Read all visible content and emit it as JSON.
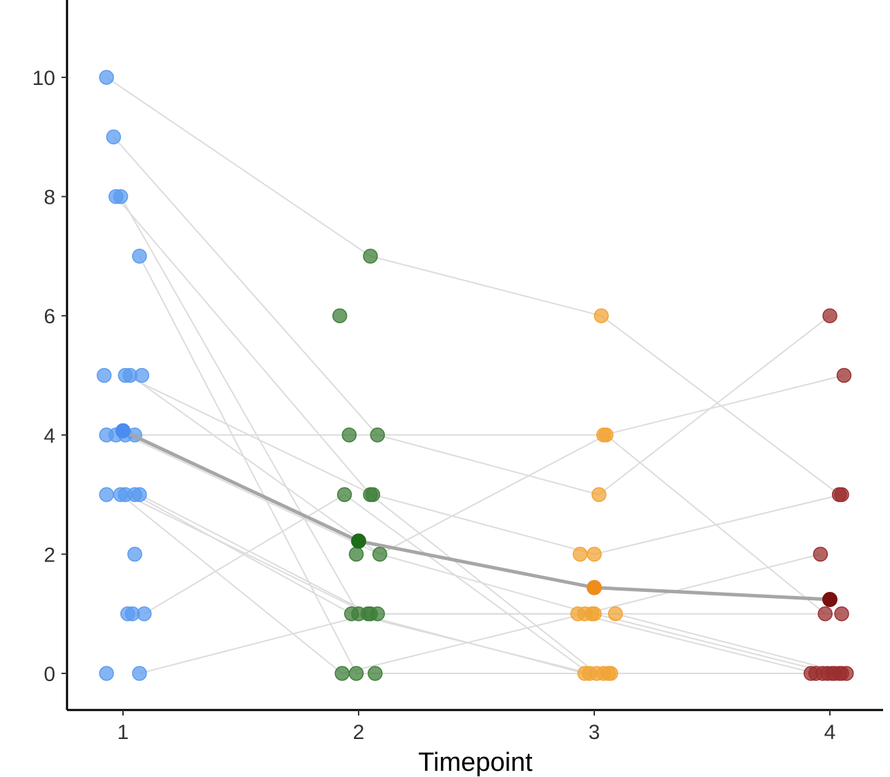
{
  "chart_data": {
    "type": "scatter",
    "xlabel": "Timepoint",
    "ylabel": "",
    "x_ticks": [
      "1",
      "2",
      "3",
      "4"
    ],
    "y_ticks": [
      "0",
      "2",
      "4",
      "6",
      "8",
      "10"
    ],
    "ylim": [
      -0.6,
      11.3
    ],
    "xlim": [
      0.74,
      4.22
    ],
    "grid": false,
    "legend": "none",
    "colors": {
      "t1": "#5b9bf0",
      "t2": "#3f7f3a",
      "t3": "#f2a435",
      "t4": "#9b2f2f",
      "t2_mean": "#1e6b1a",
      "t3_mean": "#ef8c1a",
      "t4_mean": "#7a1010",
      "t1_mean": "#4a8cf0",
      "subject_line": "#dcdcdc",
      "mean_line": "#a6a6a6"
    },
    "series": [
      {
        "timepoint": 1,
        "points": [
          [
            0.93,
            10
          ],
          [
            0.96,
            9
          ],
          [
            0.97,
            8
          ],
          [
            0.99,
            8
          ],
          [
            1.07,
            7
          ],
          [
            0.92,
            5
          ],
          [
            1.01,
            5
          ],
          [
            1.03,
            5
          ],
          [
            1.08,
            5
          ],
          [
            0.93,
            4
          ],
          [
            0.97,
            4
          ],
          [
            1.01,
            4
          ],
          [
            1.05,
            4
          ],
          [
            0.93,
            3
          ],
          [
            0.99,
            3
          ],
          [
            1.01,
            3
          ],
          [
            1.05,
            3
          ],
          [
            1.07,
            3
          ],
          [
            1.05,
            2
          ],
          [
            1.02,
            1
          ],
          [
            1.04,
            1
          ],
          [
            1.09,
            1
          ],
          [
            0.93,
            0
          ],
          [
            1.07,
            0
          ]
        ]
      },
      {
        "timepoint": 2,
        "points": [
          [
            2.05,
            7
          ],
          [
            1.92,
            6
          ],
          [
            1.96,
            4
          ],
          [
            2.08,
            4
          ],
          [
            1.94,
            3
          ],
          [
            2.05,
            3
          ],
          [
            2.06,
            3
          ],
          [
            1.99,
            2
          ],
          [
            2.09,
            2
          ],
          [
            1.97,
            1
          ],
          [
            2.0,
            1
          ],
          [
            2.04,
            1
          ],
          [
            2.05,
            1
          ],
          [
            2.08,
            1
          ],
          [
            1.93,
            0
          ],
          [
            1.99,
            0
          ],
          [
            2.07,
            0
          ]
        ]
      },
      {
        "timepoint": 3,
        "points": [
          [
            3.03,
            6
          ],
          [
            3.04,
            4
          ],
          [
            3.05,
            4
          ],
          [
            3.02,
            3
          ],
          [
            2.94,
            2
          ],
          [
            3.0,
            2
          ],
          [
            2.93,
            1
          ],
          [
            2.96,
            1
          ],
          [
            2.99,
            1
          ],
          [
            3.0,
            1
          ],
          [
            3.09,
            1
          ],
          [
            2.96,
            0
          ],
          [
            2.98,
            0
          ],
          [
            3.01,
            0
          ],
          [
            3.04,
            0
          ],
          [
            3.06,
            0
          ],
          [
            3.07,
            0
          ]
        ]
      },
      {
        "timepoint": 4,
        "points": [
          [
            4.0,
            6
          ],
          [
            4.06,
            5
          ],
          [
            4.04,
            3
          ],
          [
            4.05,
            3
          ],
          [
            3.96,
            2
          ],
          [
            3.98,
            1
          ],
          [
            4.05,
            1
          ],
          [
            3.92,
            0
          ],
          [
            3.94,
            0
          ],
          [
            3.97,
            0
          ],
          [
            3.99,
            0
          ],
          [
            4.01,
            0
          ],
          [
            4.02,
            0
          ],
          [
            4.04,
            0
          ],
          [
            4.05,
            0
          ],
          [
            4.07,
            0
          ]
        ]
      }
    ],
    "subject_lines": [
      [
        [
          0.93,
          10
        ],
        [
          2.05,
          7
        ],
        [
          3.03,
          6
        ],
        [
          4.04,
          3
        ]
      ],
      [
        [
          0.96,
          9
        ],
        [
          2.08,
          4
        ],
        [
          3.02,
          3
        ],
        [
          4.0,
          6
        ]
      ],
      [
        [
          0.97,
          8
        ],
        [
          2.05,
          3
        ],
        [
          3.01,
          0
        ],
        [
          4.02,
          0
        ]
      ],
      [
        [
          0.99,
          8
        ],
        [
          2.0,
          1
        ],
        [
          2.96,
          0
        ],
        [
          3.97,
          0
        ]
      ],
      [
        [
          1.07,
          7
        ],
        [
          1.99,
          0
        ],
        [
          3.04,
          0
        ],
        [
          4.05,
          0
        ]
      ],
      [
        [
          1.01,
          5
        ],
        [
          2.06,
          3
        ],
        [
          3.0,
          2
        ],
        [
          4.05,
          3
        ]
      ],
      [
        [
          1.03,
          5
        ],
        [
          2.09,
          2
        ],
        [
          3.05,
          4
        ],
        [
          3.98,
          1
        ]
      ],
      [
        [
          0.97,
          4
        ],
        [
          2.08,
          4
        ],
        [
          3.04,
          4
        ],
        [
          4.06,
          5
        ]
      ],
      [
        [
          1.01,
          4
        ],
        [
          2.09,
          2
        ],
        [
          2.99,
          1
        ],
        [
          4.05,
          1
        ]
      ],
      [
        [
          1.01,
          3
        ],
        [
          2.04,
          1
        ],
        [
          3.0,
          1
        ],
        [
          4.01,
          0
        ]
      ],
      [
        [
          0.99,
          3
        ],
        [
          1.93,
          0
        ],
        [
          2.96,
          1
        ],
        [
          3.96,
          2
        ]
      ],
      [
        [
          1.09,
          1
        ],
        [
          1.94,
          3
        ],
        [
          2.98,
          0
        ],
        [
          3.99,
          0
        ]
      ],
      [
        [
          1.07,
          0
        ],
        [
          2.05,
          1
        ],
        [
          3.09,
          1
        ],
        [
          4.07,
          0
        ]
      ],
      [
        [
          1.05,
          3
        ],
        [
          1.97,
          1
        ],
        [
          2.98,
          0
        ],
        [
          4.02,
          0
        ]
      ],
      [
        [
          1.07,
          3
        ],
        [
          2.05,
          1
        ],
        [
          2.93,
          1
        ],
        [
          3.94,
          0
        ]
      ]
    ],
    "mean": {
      "x": [
        1.0,
        2.0,
        3.0,
        4.0
      ],
      "y": [
        4.07,
        2.22,
        1.44,
        1.24
      ]
    }
  }
}
